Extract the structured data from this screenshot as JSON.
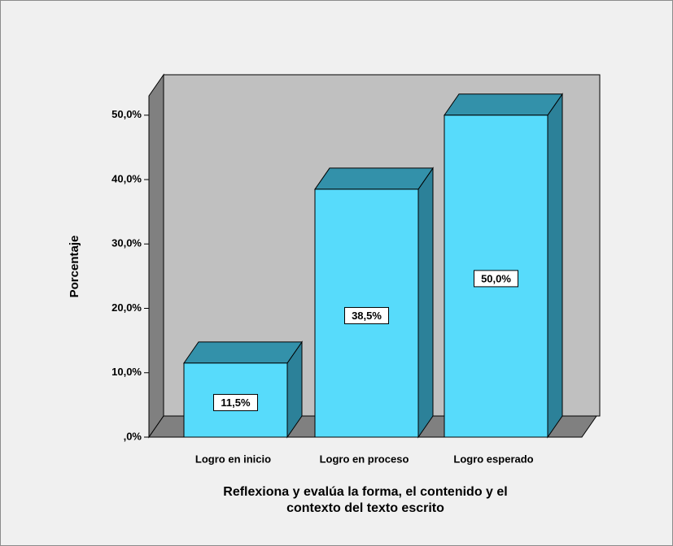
{
  "chart_data": {
    "type": "bar3d",
    "categories": [
      "Logro en inicio",
      "Logro en proceso",
      "Logro esperado"
    ],
    "values": [
      11.5,
      38.5,
      50.0
    ],
    "value_labels": [
      "11,5%",
      "38,5%",
      "50,0%"
    ],
    "color": "#57dbfb",
    "ylabel": "Porcentaje",
    "xlabel": [
      "Reflexiona y evalúa la forma, el contenido y el",
      "contexto del texto escrito"
    ],
    "ylim": [
      0,
      53
    ],
    "yticks": [
      {
        "value": 0,
        "label": ",0%"
      },
      {
        "value": 10,
        "label": "10,0%"
      },
      {
        "value": 20,
        "label": "20,0%"
      },
      {
        "value": 30,
        "label": "30,0%"
      },
      {
        "value": 40,
        "label": "40,0%"
      },
      {
        "value": 50,
        "label": "50,0%"
      }
    ],
    "grid": false
  }
}
